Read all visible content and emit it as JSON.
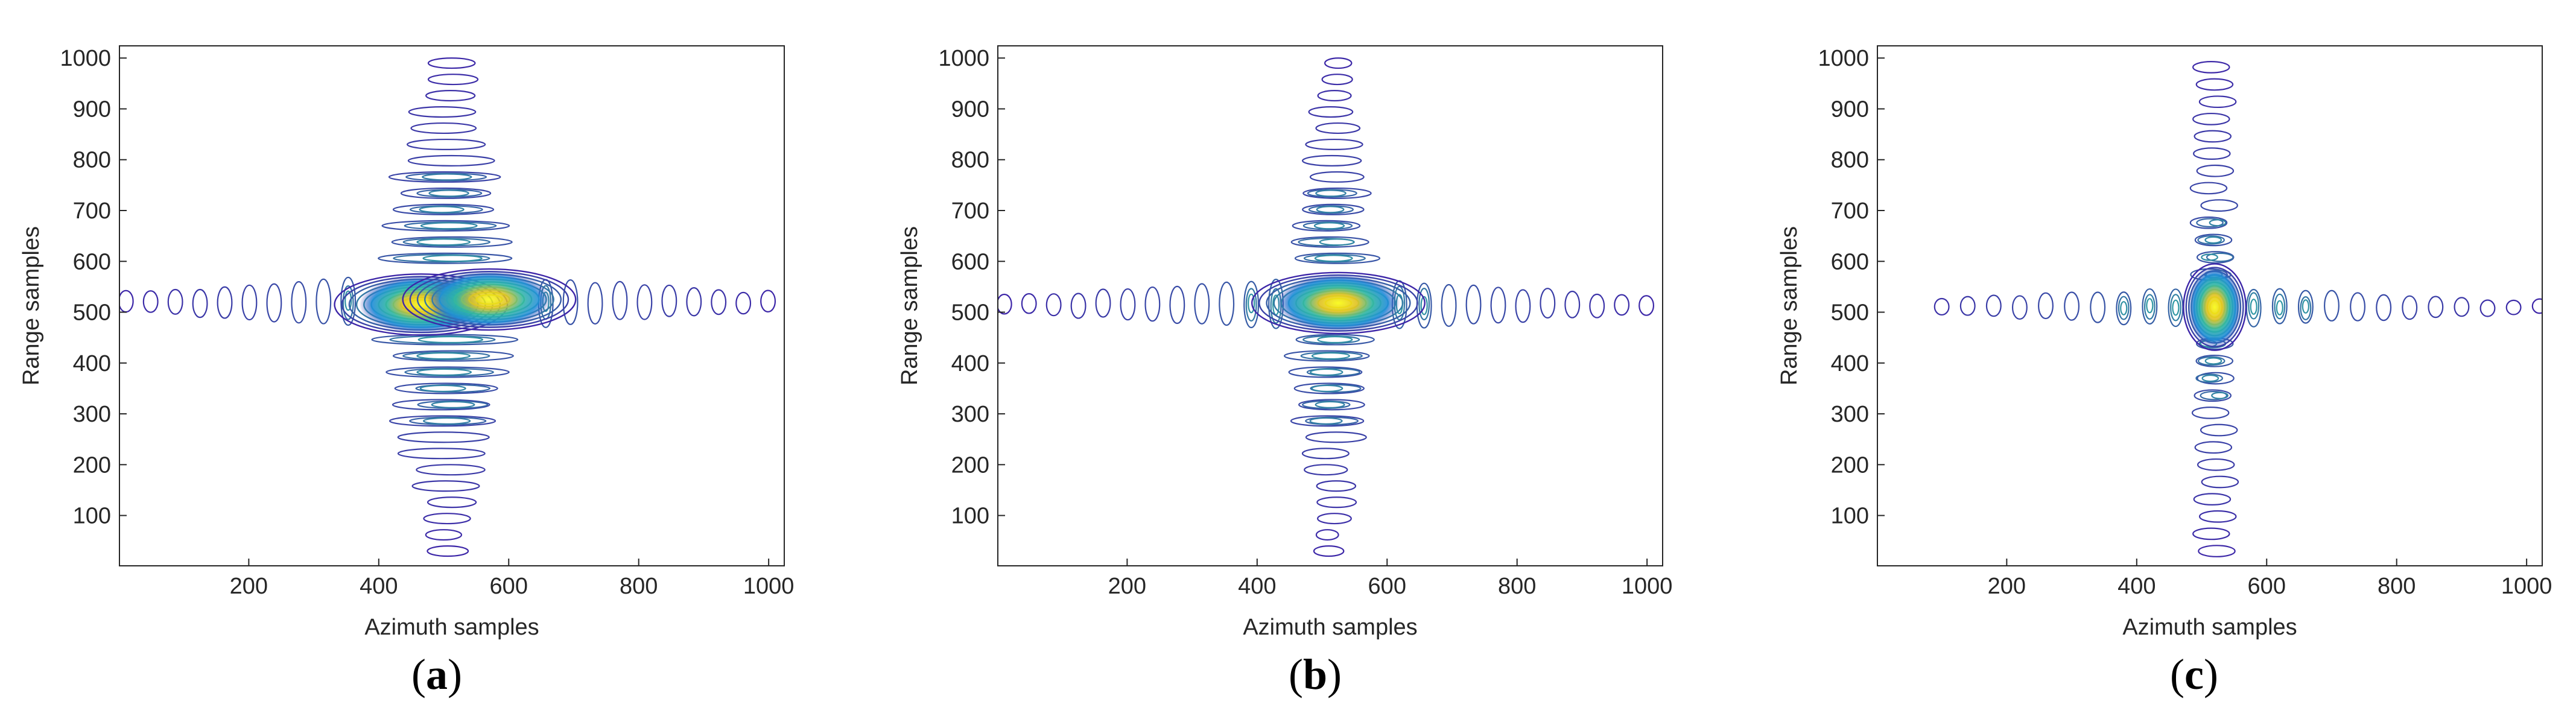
{
  "chart_data": [
    {
      "type": "contour",
      "panel_label": "a",
      "xlabel": "Azimuth samples",
      "ylabel": "Range samples",
      "xlim": [
        1,
        1024
      ],
      "ylim": [
        1,
        1024
      ],
      "xticks": [
        200,
        400,
        600,
        800,
        1000
      ],
      "yticks": [
        100,
        200,
        300,
        400,
        500,
        600,
        700,
        800,
        900,
        1000
      ],
      "peaks": [
        {
          "x": 465,
          "y": 515,
          "level": 1.0
        },
        {
          "x": 570,
          "y": 525,
          "level": 0.95
        }
      ],
      "range_sidelobe_band": {
        "x_center": 505,
        "x_halfwidth": 140,
        "y_range": [
          30,
          1000
        ]
      },
      "azimuth_sidelobe_band": {
        "y_center": 520,
        "y_halfwidth": 60,
        "x_range": [
          1,
          1024
        ]
      },
      "colormap": "parula",
      "grid": false
    },
    {
      "type": "contour",
      "panel_label": "b",
      "xlabel": "Azimuth samples",
      "ylabel": "Range samples",
      "xlim": [
        1,
        1024
      ],
      "ylim": [
        1,
        1024
      ],
      "xticks": [
        200,
        400,
        600,
        800,
        1000
      ],
      "yticks": [
        100,
        200,
        300,
        400,
        500,
        600,
        700,
        800,
        900,
        1000
      ],
      "peaks": [
        {
          "x": 525,
          "y": 518,
          "level": 1.0
        }
      ],
      "range_sidelobe_band": {
        "x_center": 515,
        "x_halfwidth": 90,
        "y_range": [
          30,
          1000
        ]
      },
      "azimuth_sidelobe_band": {
        "y_center": 515,
        "y_halfwidth": 55,
        "x_range": [
          1,
          1024
        ]
      },
      "colormap": "parula",
      "grid": false
    },
    {
      "type": "contour",
      "panel_label": "c",
      "xlabel": "Azimuth samples",
      "ylabel": "Range samples",
      "xlim": [
        1,
        1024
      ],
      "ylim": [
        1,
        1024
      ],
      "xticks": [
        200,
        400,
        600,
        800,
        1000
      ],
      "yticks": [
        100,
        200,
        300,
        400,
        500,
        600,
        700,
        800,
        900,
        1000
      ],
      "peaks": [
        {
          "x": 520,
          "y": 510,
          "level": 1.0
        }
      ],
      "range_sidelobe_band": {
        "x_center": 520,
        "x_halfwidth": 28,
        "y_range": [
          30,
          1000
        ]
      },
      "azimuth_sidelobe_band": {
        "y_center": 510,
        "y_halfwidth": 40,
        "x_range": [
          90,
          1024
        ]
      },
      "colormap": "parula",
      "grid": false
    }
  ],
  "colors": {
    "contour_low": "#3d26a8",
    "contour_mid": "#2db5a3",
    "contour_high": "#f9fb0e",
    "axis": "#262626"
  }
}
